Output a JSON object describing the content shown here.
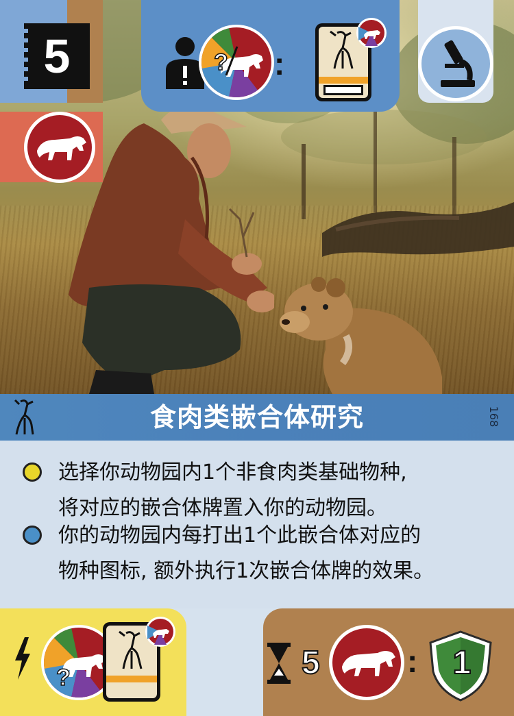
{
  "card": {
    "cost": "5",
    "title": "食肉类嵌合体研究",
    "number": "168",
    "requirement": {
      "colon": ":"
    },
    "effects": [
      {
        "dot_color": "#e8d62a",
        "lines": [
          "选择你动物园内1个非食肉类基础物种,",
          "将对应的嵌合体牌置入你的动物园。"
        ]
      },
      {
        "dot_color": "#4a90c8",
        "lines": [
          "你的动物园内每打出1个此嵌合体对应的",
          "物种图标, 额外执行1次嵌合体牌的效果。"
        ]
      }
    ],
    "bottom_right": {
      "amount": "5",
      "colon": ":",
      "shield_value": "1"
    }
  },
  "colors": {
    "predator": "#a51d24",
    "shield": "#3f8a3a",
    "title_bar": "#4f87bd"
  },
  "icons": {
    "cost": "cost-box",
    "tag": "predator-icon",
    "requirement_person": "person-alert-icon",
    "requirement_multi": "multicolor-predator-question-icon",
    "requirement_card": "chimera-card-icon",
    "science": "microscope-icon",
    "title_prefix": "mandrake-icon",
    "bottom_left_bolt": "lightning-icon",
    "hourglass": "hourglass-icon",
    "shield": "shield-icon"
  }
}
